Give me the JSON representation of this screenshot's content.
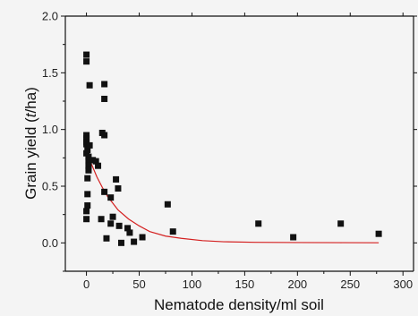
{
  "chart_data": {
    "type": "scatter",
    "xlabel": "Nematode density/ml soil",
    "ylabel_parts": [
      "Grain yield (",
      "t",
      "/ha)"
    ],
    "xlim": [
      -20,
      310
    ],
    "ylim": [
      -0.25,
      2.0
    ],
    "x_ticks": [
      0,
      50,
      100,
      150,
      200,
      250,
      300
    ],
    "y_ticks": [
      0.0,
      0.5,
      1.0,
      1.5,
      2.0
    ],
    "x_tick_labels": [
      "0",
      "50",
      "100",
      "150",
      "200",
      "250",
      "300"
    ],
    "y_tick_labels": [
      "0.0",
      "0.5",
      "1.0",
      "1.5",
      "2.0"
    ],
    "grid": false,
    "colors": {
      "markers": "#111111",
      "fit_line": "#d42020",
      "axes": "#111111"
    },
    "series": [
      {
        "kind": "points",
        "points": [
          [
            0,
            1.66
          ],
          [
            0,
            1.6
          ],
          [
            3,
            1.39
          ],
          [
            17,
            1.4
          ],
          [
            17,
            1.27
          ],
          [
            0,
            0.95
          ],
          [
            0,
            0.92
          ],
          [
            0,
            0.89
          ],
          [
            0,
            0.87
          ],
          [
            1,
            0.82
          ],
          [
            3,
            0.86
          ],
          [
            0,
            0.79
          ],
          [
            2,
            0.76
          ],
          [
            2,
            0.73
          ],
          [
            6,
            0.73
          ],
          [
            9,
            0.72
          ],
          [
            11,
            0.68
          ],
          [
            2,
            0.68
          ],
          [
            2,
            0.64
          ],
          [
            1,
            0.57
          ],
          [
            15,
            0.97
          ],
          [
            17,
            0.95
          ],
          [
            28,
            0.56
          ],
          [
            30,
            0.48
          ],
          [
            1,
            0.43
          ],
          [
            17,
            0.45
          ],
          [
            23,
            0.4
          ],
          [
            1,
            0.33
          ],
          [
            0,
            0.28
          ],
          [
            0,
            0.21
          ],
          [
            14,
            0.21
          ],
          [
            25,
            0.23
          ],
          [
            23,
            0.17
          ],
          [
            31,
            0.15
          ],
          [
            39,
            0.13
          ],
          [
            41,
            0.09
          ],
          [
            19,
            0.04
          ],
          [
            33,
            0.0
          ],
          [
            45,
            0.01
          ],
          [
            53,
            0.05
          ],
          [
            77,
            0.34
          ],
          [
            82,
            0.1
          ],
          [
            163,
            0.17
          ],
          [
            196,
            0.05
          ],
          [
            241,
            0.17
          ],
          [
            277,
            0.08
          ]
        ]
      },
      {
        "kind": "fit",
        "points": [
          [
            0,
            0.82
          ],
          [
            5,
            0.69
          ],
          [
            10,
            0.58
          ],
          [
            15,
            0.49
          ],
          [
            20,
            0.41
          ],
          [
            25,
            0.35
          ],
          [
            30,
            0.29
          ],
          [
            40,
            0.21
          ],
          [
            50,
            0.15
          ],
          [
            60,
            0.1
          ],
          [
            75,
            0.06
          ],
          [
            90,
            0.04
          ],
          [
            110,
            0.02
          ],
          [
            130,
            0.01
          ],
          [
            160,
            0.005
          ],
          [
            200,
            0.003
          ],
          [
            240,
            0.002
          ],
          [
            277,
            0.001
          ]
        ]
      }
    ]
  }
}
